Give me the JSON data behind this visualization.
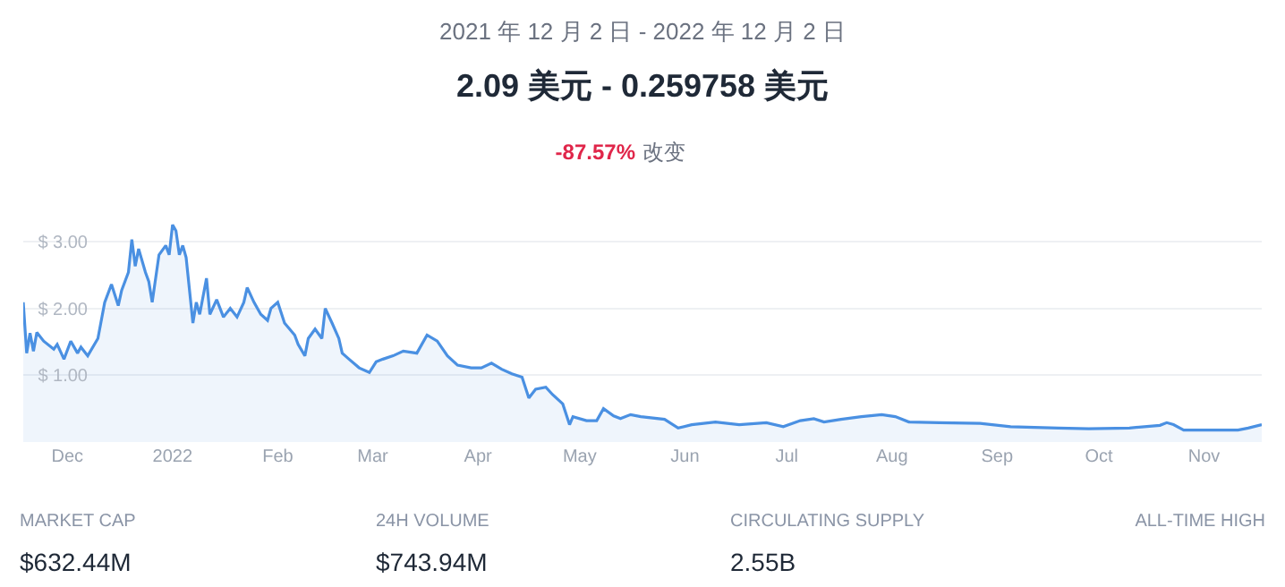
{
  "chart_data": {
    "type": "area",
    "title": "2.09 美元 - 0.259758 美元",
    "subtitle": "2021 年 12 月 2 日 - 2022 年 12 月 2 日",
    "annotations": [
      "-87.57%",
      "改变",
      "MARKET CAP",
      "$632.44M",
      "24H VOLUME",
      "$743.94M",
      "CIRCULATING SUPPLY",
      "2.55B",
      "ALL-TIME HIGH"
    ],
    "color": "#4a90e2",
    "x": [
      "2021-11-18",
      "2021-11-19",
      "2021-11-20",
      "2021-11-21",
      "2021-11-22",
      "2021-11-24",
      "2021-11-27",
      "2021-11-28",
      "2021-11-30",
      "2021-12-02",
      "2021-12-04",
      "2021-12-05",
      "2021-12-07",
      "2021-12-10",
      "2021-12-12",
      "2021-12-14",
      "2021-12-16",
      "2021-12-17",
      "2021-12-19",
      "2021-12-20",
      "2021-12-21",
      "2021-12-22",
      "2021-12-24",
      "2021-12-25",
      "2021-12-26",
      "2021-12-28",
      "2021-12-30",
      "2021-12-31",
      "2022-01-01",
      "2022-01-02",
      "2022-01-03",
      "2022-01-04",
      "2022-01-05",
      "2022-01-07",
      "2022-01-08",
      "2022-01-09",
      "2022-01-11",
      "2022-01-12",
      "2022-01-14",
      "2022-01-16",
      "2022-01-18",
      "2022-01-20",
      "2022-01-22",
      "2022-01-23",
      "2022-01-25",
      "2022-01-27",
      "2022-01-29",
      "2022-01-30",
      "2022-02-01",
      "2022-02-03",
      "2022-02-06",
      "2022-02-07",
      "2022-02-09",
      "2022-02-10",
      "2022-02-12",
      "2022-02-14",
      "2022-02-15",
      "2022-02-17",
      "2022-02-19",
      "2022-02-20",
      "2022-02-22",
      "2022-02-25",
      "2022-02-28",
      "2022-03-02",
      "2022-03-04",
      "2022-03-07",
      "2022-03-10",
      "2022-03-14",
      "2022-03-17",
      "2022-03-20",
      "2022-03-23",
      "2022-03-26",
      "2022-03-30",
      "2022-04-02",
      "2022-04-05",
      "2022-04-08",
      "2022-04-11",
      "2022-04-14",
      "2022-04-16",
      "2022-04-18",
      "2022-04-21",
      "2022-04-23",
      "2022-04-26",
      "2022-04-28",
      "2022-04-29",
      "2022-05-03",
      "2022-05-06",
      "2022-05-08",
      "2022-05-11",
      "2022-05-13",
      "2022-05-16",
      "2022-05-19",
      "2022-05-26",
      "2022-05-30",
      "2022-06-03",
      "2022-06-10",
      "2022-06-17",
      "2022-06-25",
      "2022-06-30",
      "2022-07-05",
      "2022-07-09",
      "2022-07-12",
      "2022-07-17",
      "2022-07-23",
      "2022-07-29",
      "2022-08-02",
      "2022-08-06",
      "2022-08-15",
      "2022-08-27",
      "2022-09-05",
      "2022-09-19",
      "2022-09-28",
      "2022-10-10",
      "2022-10-19",
      "2022-10-21",
      "2022-10-23",
      "2022-10-26",
      "2022-10-31",
      "2022-11-11",
      "2022-11-14",
      "2022-11-18"
    ],
    "values": [
      2.09,
      1.33,
      1.63,
      1.36,
      1.64,
      1.51,
      1.39,
      1.46,
      1.24,
      1.51,
      1.33,
      1.42,
      1.29,
      1.55,
      2.09,
      2.36,
      2.04,
      2.27,
      2.54,
      3.03,
      2.63,
      2.89,
      2.54,
      2.4,
      2.09,
      2.8,
      2.94,
      2.8,
      3.25,
      3.16,
      2.8,
      2.94,
      2.76,
      1.78,
      2.09,
      1.91,
      2.45,
      1.91,
      2.13,
      1.87,
      2.0,
      1.87,
      2.09,
      2.31,
      2.09,
      1.91,
      1.82,
      2.0,
      2.09,
      1.78,
      1.6,
      1.46,
      1.29,
      1.55,
      1.69,
      1.55,
      2.0,
      1.78,
      1.55,
      1.33,
      1.24,
      1.11,
      1.04,
      1.2,
      1.24,
      1.29,
      1.36,
      1.33,
      1.6,
      1.51,
      1.29,
      1.15,
      1.11,
      1.11,
      1.18,
      1.09,
      1.02,
      0.97,
      0.66,
      0.79,
      0.82,
      0.71,
      0.57,
      0.26,
      0.38,
      0.32,
      0.32,
      0.5,
      0.39,
      0.35,
      0.41,
      0.38,
      0.34,
      0.21,
      0.26,
      0.3,
      0.26,
      0.29,
      0.23,
      0.32,
      0.35,
      0.3,
      0.34,
      0.38,
      0.41,
      0.38,
      0.3,
      0.29,
      0.28,
      0.23,
      0.21,
      0.2,
      0.21,
      0.25,
      0.29,
      0.26,
      0.18,
      0.18,
      0.18,
      0.21,
      0.26
    ],
    "xlim": [
      "2021-11-18",
      "2022-11-18"
    ],
    "xticks": [
      {
        "value": "2021-12-01",
        "label": "Dec"
      },
      {
        "value": "2022-01-01",
        "label": "2022"
      },
      {
        "value": "2022-02-01",
        "label": "Feb"
      },
      {
        "value": "2022-03-01",
        "label": "Mar"
      },
      {
        "value": "2022-04-01",
        "label": "Apr"
      },
      {
        "value": "2022-05-01",
        "label": "May"
      },
      {
        "value": "2022-06-01",
        "label": "Jun"
      },
      {
        "value": "2022-07-01",
        "label": "Jul"
      },
      {
        "value": "2022-08-01",
        "label": "Aug"
      },
      {
        "value": "2022-09-01",
        "label": "Sep"
      },
      {
        "value": "2022-10-01",
        "label": "Oct"
      },
      {
        "value": "2022-11-01",
        "label": "Nov"
      }
    ],
    "ylim": [
      0,
      3.4
    ],
    "yticks": [
      {
        "value": 1,
        "label": "$ 1.00"
      },
      {
        "value": 2,
        "label": "$ 2.00"
      },
      {
        "value": 3,
        "label": "$ 3.00"
      }
    ],
    "grid": "y"
  }
}
